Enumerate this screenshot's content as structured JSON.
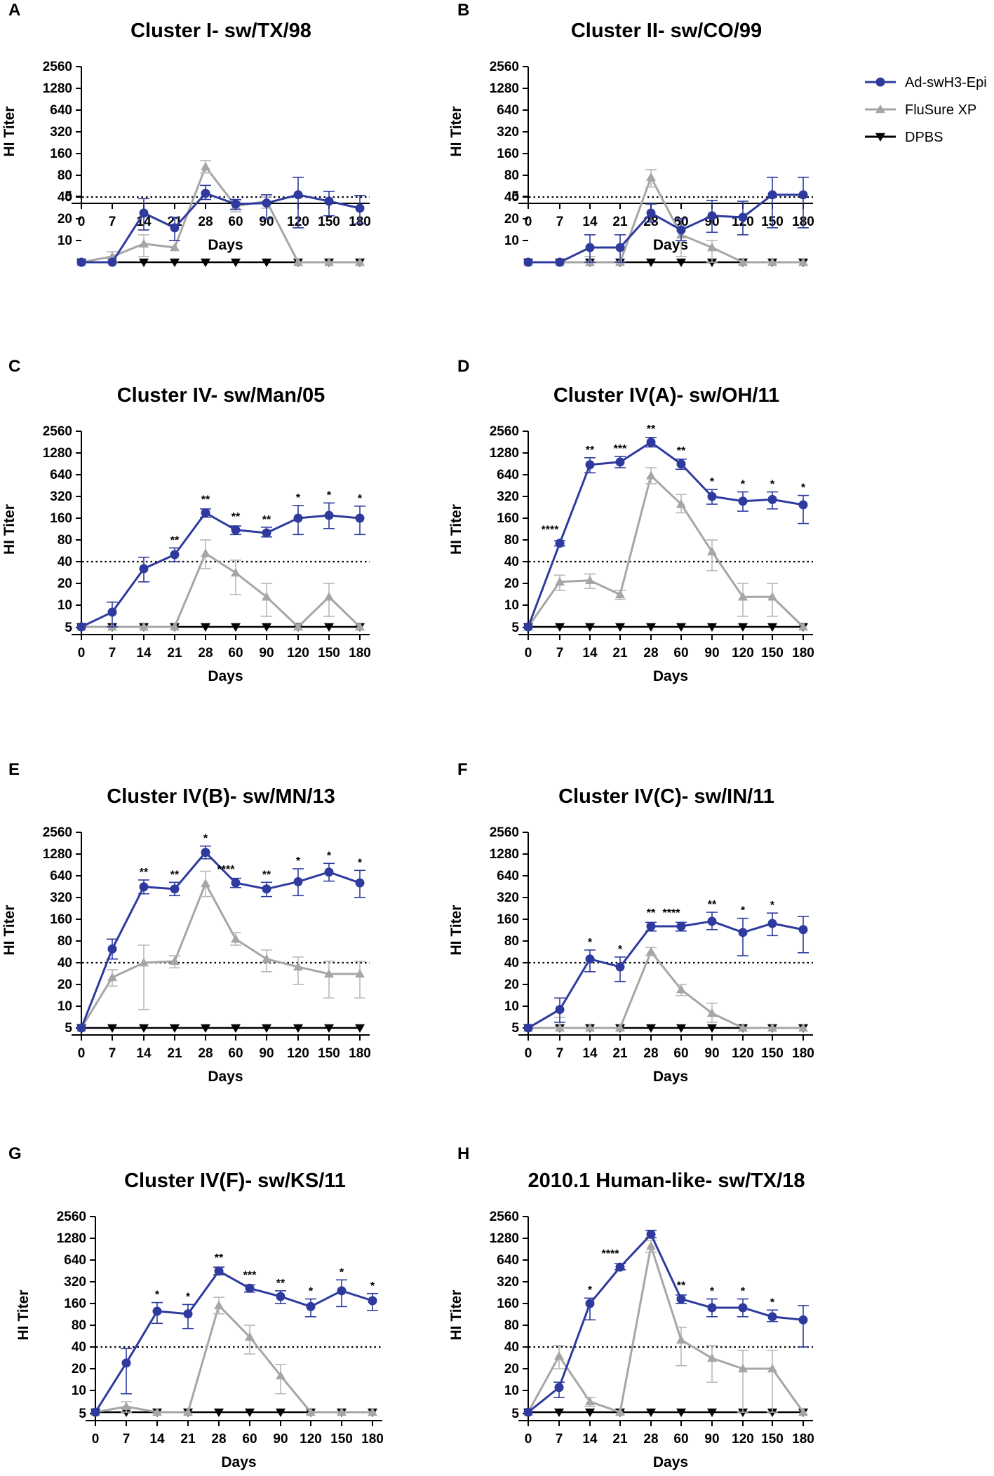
{
  "colors": {
    "ad": "#2E3A9E",
    "flusure": "#A6A6A6",
    "dpbs": "#000000"
  },
  "legend": [
    {
      "name": "Ad-swH3-Epi",
      "series": "ad",
      "marker": "circle"
    },
    {
      "name": "FluSure XP",
      "series": "flusure",
      "marker": "triangle-up"
    },
    {
      "name": "DPBS",
      "series": "dpbs",
      "marker": "triangle-down"
    }
  ],
  "chart_data": [
    {
      "panel": "A",
      "type": "line",
      "title": "Cluster I- sw/TX/98",
      "xlabel": "Days",
      "ylabel": "HI Titer",
      "categories": [
        "0",
        "7",
        "14",
        "21",
        "28",
        "60",
        "90",
        "120",
        "150",
        "180"
      ],
      "yticks": [
        "5",
        "10",
        "20",
        "40",
        "80",
        "160",
        "320",
        "640",
        "1280",
        "2560"
      ],
      "yscale": "log2",
      "ylim": [
        5,
        2560
      ],
      "reference_line": 40,
      "series": [
        {
          "name": "Ad-swH3-Epi",
          "values": [
            5,
            5,
            24,
            15,
            45,
            32,
            33,
            43,
            35,
            28
          ],
          "err_hi": [
            5,
            5,
            38,
            21,
            58,
            37,
            43,
            75,
            48,
            42
          ],
          "err_lo": [
            5,
            5,
            14,
            10,
            37,
            27,
            20,
            15,
            22,
            17
          ]
        },
        {
          "name": "FluSure XP",
          "values": [
            5,
            6,
            9,
            8,
            105,
            30,
            35,
            5,
            5,
            5
          ],
          "err_hi": [
            5,
            7,
            12,
            8,
            128,
            35,
            40,
            5,
            5,
            5
          ],
          "err_lo": [
            5,
            5,
            6,
            8,
            86,
            25,
            28,
            5,
            5,
            5
          ]
        },
        {
          "name": "DPBS",
          "values": [
            5,
            5,
            5,
            5,
            5,
            5,
            5,
            5,
            5,
            5
          ]
        }
      ],
      "significance": [
        "",
        "",
        "",
        "",
        "",
        "",
        "",
        "",
        "",
        ""
      ]
    },
    {
      "panel": "B",
      "type": "line",
      "title": "Cluster II- sw/CO/99",
      "xlabel": "Days",
      "ylabel": "HI Titer",
      "categories": [
        "0",
        "7",
        "14",
        "21",
        "28",
        "60",
        "90",
        "120",
        "150",
        "180"
      ],
      "yticks": [
        "5",
        "10",
        "20",
        "40",
        "80",
        "160",
        "320",
        "640",
        "1280",
        "2560"
      ],
      "yscale": "log2",
      "ylim": [
        5,
        2560
      ],
      "reference_line": 40,
      "series": [
        {
          "name": "Ad-swH3-Epi",
          "values": [
            5,
            5,
            8,
            8,
            24,
            14,
            22,
            21,
            43,
            43
          ],
          "err_hi": [
            5,
            5,
            12,
            12,
            32,
            20,
            36,
            35,
            75,
            75
          ],
          "err_lo": [
            5,
            5,
            5,
            5,
            18,
            10,
            13,
            12,
            15,
            15
          ]
        },
        {
          "name": "FluSure XP",
          "values": [
            5,
            5,
            5,
            5,
            75,
            12,
            8,
            5,
            5,
            5
          ],
          "err_hi": [
            5,
            5,
            6,
            5,
            96,
            15,
            10,
            5,
            5,
            5
          ],
          "err_lo": [
            5,
            5,
            5,
            5,
            55,
            6,
            5,
            5,
            5,
            5
          ]
        },
        {
          "name": "DPBS",
          "values": [
            5,
            5,
            5,
            5,
            5,
            5,
            5,
            5,
            5,
            5
          ]
        }
      ],
      "significance": [
        "",
        "",
        "",
        "",
        "",
        "",
        "",
        "",
        "",
        ""
      ]
    },
    {
      "panel": "C",
      "type": "line",
      "title": "Cluster IV- sw/Man/05",
      "xlabel": "Days",
      "ylabel": "HI Titer",
      "categories": [
        "0",
        "7",
        "14",
        "21",
        "28",
        "60",
        "90",
        "120",
        "150",
        "180"
      ],
      "yticks": [
        "5",
        "10",
        "20",
        "40",
        "80",
        "160",
        "320",
        "640",
        "1280",
        "2560"
      ],
      "yscale": "log2",
      "ylim": [
        5,
        2560
      ],
      "reference_line": 40,
      "series": [
        {
          "name": "Ad-swH3-Epi",
          "values": [
            5,
            8,
            32,
            50,
            190,
            110,
            100,
            160,
            175,
            160
          ],
          "err_hi": [
            5,
            11,
            46,
            62,
            215,
            125,
            120,
            240,
            260,
            235
          ],
          "err_lo": [
            5,
            5,
            21,
            40,
            165,
            95,
            88,
            95,
            115,
            95
          ]
        },
        {
          "name": "FluSure XP",
          "values": [
            5,
            5,
            5,
            5,
            52,
            28,
            13,
            5,
            13,
            5
          ],
          "err_hi": [
            5,
            5,
            5,
            5,
            80,
            42,
            20,
            5,
            20,
            5
          ],
          "err_lo": [
            5,
            5,
            5,
            5,
            32,
            14,
            7,
            5,
            7,
            5
          ]
        },
        {
          "name": "DPBS",
          "values": [
            5,
            5,
            5,
            5,
            5,
            5,
            5,
            5,
            5,
            5
          ]
        }
      ],
      "significance": [
        "",
        "",
        "",
        "**",
        "**",
        "**",
        "**",
        "*",
        "*",
        "*"
      ]
    },
    {
      "panel": "D",
      "type": "line",
      "title": "Cluster IV(A)- sw/OH/11",
      "xlabel": "Days",
      "ylabel": "HI Titer",
      "categories": [
        "0",
        "7",
        "14",
        "21",
        "28",
        "60",
        "90",
        "120",
        "150",
        "180"
      ],
      "yticks": [
        "5",
        "10",
        "20",
        "40",
        "80",
        "160",
        "320",
        "640",
        "1280",
        "2560"
      ],
      "yscale": "log2",
      "ylim": [
        5,
        2560
      ],
      "reference_line": 40,
      "series": [
        {
          "name": "Ad-swH3-Epi",
          "values": [
            5,
            72,
            880,
            960,
            1800,
            900,
            320,
            275,
            290,
            245
          ],
          "err_hi": [
            5,
            78,
            1100,
            1150,
            2100,
            1050,
            400,
            370,
            370,
            330
          ],
          "err_lo": [
            5,
            66,
            680,
            800,
            1550,
            760,
            250,
            200,
            215,
            135
          ]
        },
        {
          "name": "FluSure XP",
          "values": [
            5,
            21,
            22,
            14,
            620,
            250,
            55,
            13,
            13,
            5
          ],
          "err_hi": [
            5,
            26,
            27,
            16,
            800,
            340,
            80,
            20,
            20,
            5
          ],
          "err_lo": [
            5,
            16,
            17,
            12,
            480,
            190,
            30,
            7,
            7,
            5
          ]
        },
        {
          "name": "DPBS",
          "values": [
            5,
            5,
            5,
            5,
            5,
            5,
            5,
            5,
            5,
            5
          ]
        }
      ],
      "significance": [
        "",
        "****",
        "**",
        "***",
        "**",
        "**",
        "*",
        "*",
        "*",
        "*"
      ]
    },
    {
      "panel": "E",
      "type": "line",
      "title": "Cluster IV(B)- sw/MN/13",
      "xlabel": "Days",
      "ylabel": "HI Titer",
      "categories": [
        "0",
        "7",
        "14",
        "21",
        "28",
        "60",
        "90",
        "120",
        "150",
        "180"
      ],
      "yticks": [
        "5",
        "10",
        "20",
        "40",
        "80",
        "160",
        "320",
        "640",
        "1280",
        "2560"
      ],
      "yscale": "log2",
      "ylim": [
        5,
        2560
      ],
      "reference_line": 40,
      "series": [
        {
          "name": "Ad-swH3-Epi",
          "values": [
            5,
            62,
            450,
            420,
            1350,
            510,
            420,
            530,
            720,
            510
          ],
          "err_hi": [
            5,
            85,
            560,
            520,
            1650,
            590,
            520,
            800,
            950,
            760
          ],
          "err_lo": [
            5,
            45,
            360,
            340,
            1100,
            440,
            330,
            340,
            540,
            320
          ]
        },
        {
          "name": "FluSure XP",
          "values": [
            5,
            25,
            40,
            42,
            500,
            85,
            45,
            35,
            28,
            28
          ],
          "err_hi": [
            5,
            32,
            70,
            50,
            740,
            105,
            60,
            48,
            42,
            42
          ],
          "err_lo": [
            5,
            19,
            9,
            34,
            330,
            70,
            30,
            20,
            13,
            13
          ]
        },
        {
          "name": "DPBS",
          "values": [
            5,
            5,
            5,
            5,
            5,
            5,
            5,
            5,
            5,
            5
          ]
        }
      ],
      "significance": [
        "",
        "",
        "**",
        "**",
        "*",
        "****",
        "**",
        "*",
        "*",
        "*"
      ]
    },
    {
      "panel": "F",
      "type": "line",
      "title": "Cluster IV(C)- sw/IN/11",
      "xlabel": "Days",
      "ylabel": "HI Titer",
      "categories": [
        "0",
        "7",
        "14",
        "21",
        "28",
        "60",
        "90",
        "120",
        "150",
        "180"
      ],
      "yticks": [
        "5",
        "10",
        "20",
        "40",
        "80",
        "160",
        "320",
        "640",
        "1280",
        "2560"
      ],
      "yscale": "log2",
      "ylim": [
        5,
        2560
      ],
      "reference_line": 40,
      "series": [
        {
          "name": "Ad-swH3-Epi",
          "values": [
            5,
            9,
            45,
            35,
            128,
            128,
            150,
            105,
            140,
            115
          ],
          "err_hi": [
            5,
            13,
            60,
            48,
            145,
            145,
            200,
            165,
            195,
            175
          ],
          "err_lo": [
            5,
            6,
            30,
            22,
            110,
            110,
            115,
            50,
            95,
            55
          ]
        },
        {
          "name": "FluSure XP",
          "values": [
            5,
            5,
            5,
            5,
            57,
            17,
            8,
            5,
            5,
            5
          ],
          "err_hi": [
            5,
            7,
            5,
            5,
            65,
            20,
            11,
            5,
            5,
            5
          ],
          "err_lo": [
            5,
            5,
            5,
            5,
            50,
            14,
            6,
            5,
            5,
            5
          ]
        },
        {
          "name": "DPBS",
          "values": [
            5,
            5,
            5,
            5,
            5,
            5,
            5,
            5,
            5,
            5
          ]
        }
      ],
      "significance": [
        "",
        "",
        "*",
        "*",
        "**",
        "****",
        "**",
        "*",
        "*",
        ""
      ]
    },
    {
      "panel": "G",
      "type": "line",
      "title": "Cluster IV(F)- sw/KS/11",
      "xlabel": "Days",
      "ylabel": "HI Titer",
      "categories": [
        "0",
        "7",
        "14",
        "21",
        "28",
        "60",
        "90",
        "120",
        "150",
        "180"
      ],
      "yticks": [
        "5",
        "10",
        "20",
        "40",
        "80",
        "160",
        "320",
        "640",
        "1280",
        "2560"
      ],
      "yscale": "log2",
      "ylim": [
        5,
        2560
      ],
      "reference_line": 40,
      "series": [
        {
          "name": "Ad-swH3-Epi",
          "values": [
            5,
            24,
            125,
            115,
            450,
            260,
            200,
            145,
            240,
            175
          ],
          "err_hi": [
            5,
            38,
            165,
            155,
            510,
            290,
            240,
            185,
            340,
            220
          ],
          "err_lo": [
            5,
            9,
            85,
            72,
            400,
            230,
            160,
            105,
            145,
            128
          ]
        },
        {
          "name": "FluSure XP",
          "values": [
            5,
            6,
            5,
            5,
            150,
            55,
            16,
            5,
            5,
            5
          ],
          "err_hi": [
            5,
            7,
            5,
            5,
            195,
            80,
            23,
            5,
            5,
            5
          ],
          "err_lo": [
            5,
            5,
            5,
            5,
            115,
            32,
            9,
            5,
            5,
            5
          ]
        },
        {
          "name": "DPBS",
          "values": [
            5,
            5,
            5,
            5,
            5,
            5,
            5,
            5,
            5,
            5
          ]
        }
      ],
      "significance": [
        "",
        "",
        "*",
        "*",
        "**",
        "***",
        "**",
        "*",
        "*",
        "*"
      ]
    },
    {
      "panel": "H",
      "type": "line",
      "title": "2010.1 Human-like- sw/TX/18",
      "xlabel": "Days",
      "ylabel": "HI Titer",
      "categories": [
        "0",
        "7",
        "14",
        "21",
        "28",
        "60",
        "90",
        "120",
        "150",
        "180"
      ],
      "yticks": [
        "5",
        "10",
        "20",
        "40",
        "80",
        "160",
        "320",
        "640",
        "1280",
        "2560"
      ],
      "yscale": "log2",
      "ylim": [
        5,
        2560
      ],
      "reference_line": 40,
      "series": [
        {
          "name": "Ad-swH3-Epi",
          "values": [
            5,
            11,
            160,
            510,
            1450,
            185,
            140,
            140,
            105,
            95
          ],
          "err_hi": [
            5,
            13,
            190,
            570,
            1650,
            210,
            185,
            185,
            130,
            150
          ],
          "err_lo": [
            5,
            8,
            95,
            470,
            1300,
            160,
            105,
            105,
            90,
            40
          ]
        },
        {
          "name": "FluSure XP",
          "values": [
            5,
            30,
            7,
            5,
            1000,
            50,
            28,
            20,
            20,
            5
          ],
          "err_hi": [
            5,
            42,
            8,
            5,
            1200,
            75,
            42,
            36,
            36,
            5
          ],
          "err_lo": [
            5,
            20,
            6,
            5,
            820,
            22,
            13,
            5,
            5,
            5
          ]
        },
        {
          "name": "DPBS",
          "values": [
            5,
            5,
            5,
            5,
            5,
            5,
            5,
            5,
            5,
            5
          ]
        }
      ],
      "significance": [
        "",
        "",
        "*",
        "****",
        "",
        "**",
        "*",
        "*",
        "*",
        ""
      ]
    }
  ]
}
